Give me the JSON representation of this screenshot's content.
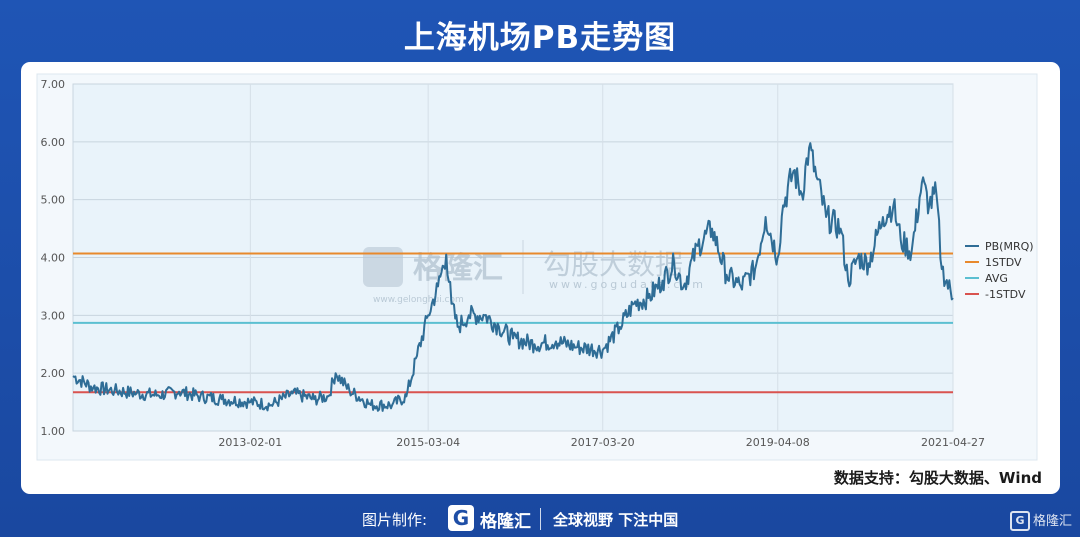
{
  "title": "上海机场PB走势图",
  "source": "数据支持：勾股大数据、Wind",
  "watermark": {
    "brand": "格隆汇",
    "brand_url": "www.gelonghui.com",
    "product": "勾股大数据",
    "product_url": "www.gogudata.com"
  },
  "footer": {
    "made_by": "图片制作:",
    "logo_text": "格隆汇",
    "slogan": "全球视野 下注中国",
    "corner_logo_text": "格隆汇"
  },
  "colors": {
    "pb": "#2f6d96",
    "stdv_plus": "#e8892c",
    "avg": "#5bbfd1",
    "stdv_minus": "#d9534f",
    "plot_bg": "#e9f3fa",
    "header_bg": "#1e4ea6"
  },
  "chart_data": {
    "type": "line",
    "title": "上海机场PB走势图",
    "xlabel": "",
    "ylabel": "",
    "ylim": [
      1.0,
      7.0
    ],
    "yticks": [
      "1.00",
      "2.00",
      "3.00",
      "4.00",
      "5.00",
      "6.00",
      "7.00"
    ],
    "xticks": [
      "2013-02-01",
      "2015-03-04",
      "2017-03-20",
      "2019-04-08",
      "2021-04-27"
    ],
    "legend_position": "right",
    "series": [
      {
        "name": "PB(MRQ)",
        "x": [
          "2011-01-04",
          "2011-04-01",
          "2011-07-01",
          "2011-10-03",
          "2012-01-02",
          "2012-04-02",
          "2012-07-02",
          "2012-10-01",
          "2013-02-01",
          "2013-05-01",
          "2013-08-01",
          "2013-11-01",
          "2014-01-01",
          "2014-02-01",
          "2014-04-01",
          "2014-07-01",
          "2014-10-01",
          "2014-12-01",
          "2015-01-15",
          "2015-03-04",
          "2015-04-15",
          "2015-05-20",
          "2015-06-12",
          "2015-07-08",
          "2015-08-25",
          "2015-11-01",
          "2016-01-01",
          "2016-03-01",
          "2016-06-01",
          "2016-09-01",
          "2016-12-01",
          "2017-03-20",
          "2017-06-01",
          "2017-08-01",
          "2017-10-01",
          "2017-12-01",
          "2018-01-20",
          "2018-03-01",
          "2018-05-01",
          "2018-07-01",
          "2018-09-01",
          "2018-11-01",
          "2019-01-01",
          "2019-02-15",
          "2019-04-08",
          "2019-05-01",
          "2019-06-15",
          "2019-07-20",
          "2019-08-20",
          "2019-09-20",
          "2019-11-01",
          "2020-01-02",
          "2020-02-03",
          "2020-03-15",
          "2020-05-01",
          "2020-07-01",
          "2020-08-15",
          "2020-09-15",
          "2020-11-01",
          "2020-12-15",
          "2021-01-15",
          "2021-02-15",
          "2021-03-10",
          "2021-04-27"
        ],
        "values": [
          1.95,
          1.75,
          1.7,
          1.65,
          1.62,
          1.68,
          1.6,
          1.55,
          1.5,
          1.45,
          1.65,
          1.55,
          1.6,
          2.0,
          1.7,
          1.45,
          1.45,
          1.6,
          2.3,
          3.0,
          3.5,
          4.05,
          3.2,
          2.8,
          3.0,
          3.0,
          2.8,
          2.6,
          2.5,
          2.55,
          2.45,
          2.4,
          2.8,
          3.2,
          3.3,
          3.6,
          3.9,
          3.5,
          4.2,
          4.5,
          3.7,
          3.5,
          3.8,
          4.7,
          4.0,
          4.9,
          5.5,
          5.1,
          5.9,
          5.4,
          4.7,
          4.5,
          3.6,
          4.0,
          3.9,
          4.7,
          4.9,
          4.3,
          4.1,
          5.3,
          4.9,
          5.1,
          3.8,
          3.3
        ]
      },
      {
        "name": "1STDV",
        "constant": 4.07
      },
      {
        "name": "AVG",
        "constant": 2.87
      },
      {
        "name": "-1STDV",
        "constant": 1.67
      }
    ],
    "x_start": "2011-01-04",
    "x_end": "2021-04-27",
    "grid": true
  }
}
